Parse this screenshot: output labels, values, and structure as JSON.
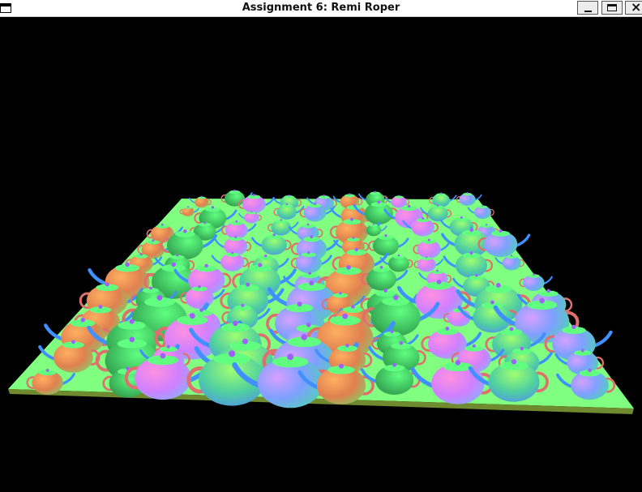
{
  "window": {
    "title": "Assignment 6: Remi Roper",
    "controls": {
      "minimize_icon": "minimize-icon",
      "maximize_icon": "maximize-icon",
      "close_icon": "close-icon",
      "close_glyph": "×"
    }
  },
  "scene": {
    "background_color": "#000000",
    "floor_color": "#80ff80",
    "floor_edge_color": "#6f8a2f",
    "object": "teapot",
    "shading": "surface normals as color"
  }
}
